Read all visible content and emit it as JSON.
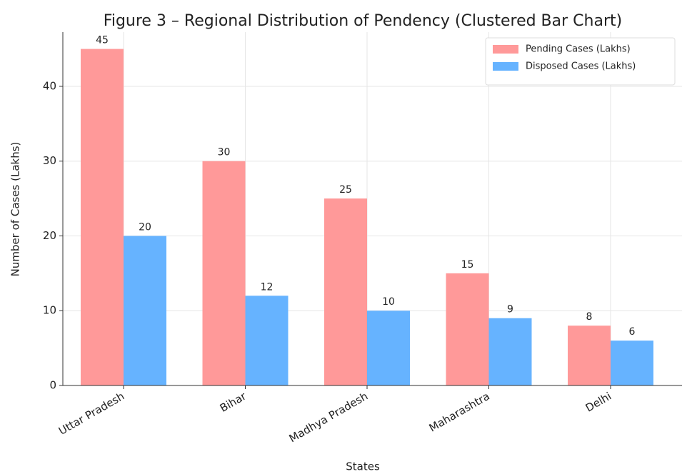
{
  "chart_data": {
    "type": "bar",
    "title": "Figure 3 – Regional Distribution of Pendency (Clustered Bar Chart)",
    "xlabel": "States",
    "ylabel": "Number of Cases (Lakhs)",
    "categories": [
      "Uttar Pradesh",
      "Bihar",
      "Madhya Pradesh",
      "Maharashtra",
      "Delhi"
    ],
    "series": [
      {
        "name": "Pending Cases (Lakhs)",
        "color": "#ff9999",
        "values": [
          45,
          30,
          25,
          15,
          8
        ]
      },
      {
        "name": "Disposed Cases (Lakhs)",
        "color": "#66b3ff",
        "values": [
          20,
          12,
          10,
          9,
          6
        ]
      }
    ],
    "ylim": [
      0,
      47.25
    ],
    "yticks": [
      0,
      10,
      20,
      30,
      40
    ],
    "grid": true,
    "legend": "upper right"
  }
}
